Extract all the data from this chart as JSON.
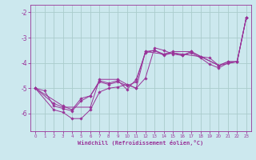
{
  "xlabel": "Windchill (Refroidissement éolien,°C)",
  "bg_color": "#cce8ee",
  "grid_color": "#aacccc",
  "line_color": "#993399",
  "xlim": [
    -0.5,
    23.5
  ],
  "ylim": [
    -6.7,
    -1.7
  ],
  "xticks": [
    0,
    1,
    2,
    3,
    4,
    5,
    6,
    7,
    8,
    9,
    10,
    11,
    12,
    13,
    14,
    15,
    16,
    17,
    18,
    19,
    20,
    21,
    22,
    23
  ],
  "yticks": [
    -6,
    -5,
    -4,
    -3,
    -2
  ],
  "series": [
    {
      "x": [
        0,
        1,
        2,
        3,
        4,
        5,
        6,
        7,
        8,
        9,
        10,
        11,
        12,
        13,
        14,
        15,
        16,
        17,
        18,
        19,
        20,
        21,
        22,
        23
      ],
      "y": [
        -5.0,
        -5.1,
        -5.7,
        -5.8,
        -5.9,
        -5.5,
        -5.3,
        -4.7,
        -4.8,
        -4.7,
        -5.05,
        -4.65,
        -3.6,
        -3.5,
        -3.7,
        -3.6,
        -3.7,
        -3.55,
        -3.75,
        -3.8,
        -4.1,
        -3.95,
        -3.95,
        -2.2
      ]
    },
    {
      "x": [
        0,
        2,
        3,
        4,
        5,
        6,
        7,
        8,
        9,
        10,
        11,
        12,
        13,
        14,
        15,
        16,
        17,
        18,
        19,
        20,
        21,
        22,
        23
      ],
      "y": [
        -5.0,
        -5.85,
        -5.95,
        -6.2,
        -6.2,
        -5.85,
        -5.15,
        -5.0,
        -4.95,
        -4.85,
        -5.0,
        -4.6,
        -3.4,
        -3.5,
        -3.65,
        -3.7,
        -3.6,
        -3.8,
        -4.05,
        -4.2,
        -4.0,
        -3.95,
        -2.2
      ]
    },
    {
      "x": [
        0,
        3,
        4,
        5,
        6,
        7,
        8,
        9,
        10,
        11,
        12,
        13,
        14,
        15,
        16,
        18,
        20,
        21,
        22,
        23
      ],
      "y": [
        -5.0,
        -5.7,
        -5.85,
        -5.4,
        -5.3,
        -4.75,
        -4.85,
        -4.75,
        -4.9,
        -4.75,
        -3.55,
        -3.5,
        -3.65,
        -3.6,
        -3.65,
        -3.75,
        -4.1,
        -3.95,
        -3.95,
        -2.2
      ]
    },
    {
      "x": [
        0,
        2,
        3,
        6,
        7,
        9,
        10,
        11,
        12,
        14,
        15,
        17,
        20,
        22,
        23
      ],
      "y": [
        -5.0,
        -5.6,
        -5.75,
        -5.75,
        -4.65,
        -4.65,
        -4.85,
        -5.0,
        -3.55,
        -3.65,
        -3.55,
        -3.55,
        -4.1,
        -3.95,
        -2.2
      ]
    }
  ]
}
